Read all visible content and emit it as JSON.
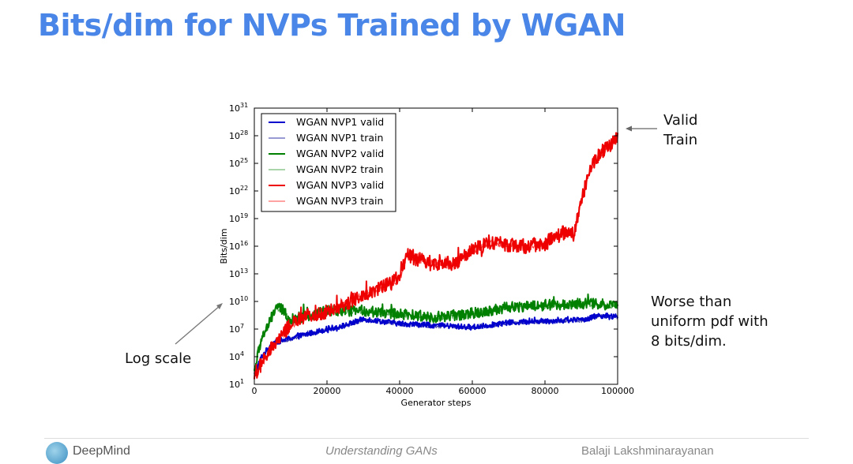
{
  "slide": {
    "title": "Bits/dim for NVPs Trained by WGAN",
    "annotations": {
      "valid_train": [
        "Valid",
        "Train"
      ],
      "log_scale": "Log scale",
      "worse": [
        "Worse than",
        "uniform pdf with",
        "8 bits/dim."
      ]
    },
    "footer": {
      "brand": "DeepMind",
      "center": "Understanding GANs",
      "right": "Balaji Lakshminarayanan"
    }
  },
  "chart_data": {
    "type": "line",
    "title": "",
    "xlabel": "Generator steps",
    "ylabel": "Bits/dim",
    "x_range": [
      0,
      100000
    ],
    "y_scale": "log",
    "y_exponent_range": [
      1,
      31
    ],
    "x_ticks": [
      "0",
      "20000",
      "40000",
      "60000",
      "80000",
      "100000"
    ],
    "y_ticks": [
      {
        "base": "10",
        "exp": "1"
      },
      {
        "base": "10",
        "exp": "4"
      },
      {
        "base": "10",
        "exp": "7"
      },
      {
        "base": "10",
        "exp": "10"
      },
      {
        "base": "10",
        "exp": "13"
      },
      {
        "base": "10",
        "exp": "16"
      },
      {
        "base": "10",
        "exp": "19"
      },
      {
        "base": "10",
        "exp": "22"
      },
      {
        "base": "10",
        "exp": "25"
      },
      {
        "base": "10",
        "exp": "28"
      },
      {
        "base": "10",
        "exp": "31"
      }
    ],
    "grid": false,
    "legend_position": "top-left",
    "series": [
      {
        "name": "WGAN NVP1 valid",
        "color": "#0000cc",
        "width": 2.0,
        "x": [
          0,
          2000,
          5000,
          10000,
          15000,
          20000,
          25000,
          30000,
          40000,
          50000,
          60000,
          70000,
          80000,
          90000,
          95000,
          100000
        ],
        "log10": [
          2.0,
          4.0,
          5.5,
          6.0,
          6.5,
          7.0,
          7.4,
          8.1,
          7.6,
          7.4,
          7.2,
          7.7,
          7.9,
          8.0,
          8.5,
          8.3
        ],
        "noise": 0.3
      },
      {
        "name": "WGAN NVP1 train",
        "color": "#3333aa",
        "width": 1.0,
        "x": [
          0,
          2000,
          5000,
          10000,
          15000,
          20000,
          25000,
          30000,
          40000,
          50000,
          60000,
          70000,
          80000,
          90000,
          95000,
          100000
        ],
        "log10": [
          1.9,
          3.9,
          5.4,
          5.9,
          6.4,
          6.9,
          7.3,
          8.0,
          7.5,
          7.3,
          7.1,
          7.6,
          7.8,
          7.9,
          8.4,
          8.2
        ],
        "noise": 0.2
      },
      {
        "name": "WGAN NVP2 valid",
        "color": "#008000",
        "width": 2.0,
        "x": [
          0,
          2000,
          4000,
          6000,
          8000,
          10000,
          15000,
          20000,
          30000,
          40000,
          50000,
          60000,
          70000,
          80000,
          90000,
          100000
        ],
        "log10": [
          2.5,
          6.0,
          7.5,
          9.5,
          9.0,
          8.0,
          8.5,
          9.0,
          9.0,
          8.6,
          8.3,
          8.7,
          9.4,
          9.6,
          9.8,
          9.6
        ],
        "noise": 0.6
      },
      {
        "name": "WGAN NVP2 train",
        "color": "#55aa55",
        "width": 1.0,
        "x": [
          0,
          2000,
          4000,
          6000,
          8000,
          10000,
          15000,
          20000,
          30000,
          40000,
          50000,
          60000,
          70000,
          80000,
          90000,
          100000
        ],
        "log10": [
          2.4,
          5.9,
          7.4,
          9.3,
          8.9,
          7.9,
          8.4,
          8.9,
          8.9,
          8.5,
          8.2,
          8.6,
          9.3,
          9.5,
          9.7,
          9.5
        ],
        "noise": 0.3
      },
      {
        "name": "WGAN NVP3 valid",
        "color": "#ee0000",
        "width": 2.0,
        "x": [
          0,
          5000,
          10000,
          15000,
          20000,
          25000,
          30000,
          35000,
          40000,
          42000,
          45000,
          50000,
          55000,
          60000,
          65000,
          70000,
          75000,
          80000,
          85000,
          88000,
          90000,
          92000,
          95000,
          98000,
          100000
        ],
        "log10": [
          2.0,
          5.0,
          7.5,
          8.5,
          8.9,
          9.7,
          10.8,
          11.5,
          12.5,
          15.0,
          14.6,
          14.2,
          14.0,
          15.5,
          16.5,
          16.2,
          16.0,
          16.3,
          17.5,
          17.3,
          21.0,
          24.0,
          26.0,
          27.0,
          28.0
        ],
        "noise": 0.8
      },
      {
        "name": "WGAN NVP3 train",
        "color": "#ff4444",
        "width": 1.0,
        "x": [
          0,
          5000,
          10000,
          15000,
          20000,
          25000,
          30000,
          35000,
          40000,
          42000,
          45000,
          50000,
          55000,
          60000,
          65000,
          70000,
          75000,
          80000,
          85000,
          88000,
          90000,
          92000,
          95000,
          98000,
          100000
        ],
        "log10": [
          1.9,
          4.9,
          7.4,
          8.4,
          8.8,
          9.6,
          10.7,
          11.4,
          12.4,
          14.9,
          14.5,
          14.1,
          13.9,
          15.4,
          16.4,
          16.1,
          15.9,
          16.2,
          17.4,
          17.2,
          20.9,
          23.9,
          25.9,
          26.9,
          27.9
        ],
        "noise": 0.4
      }
    ]
  }
}
